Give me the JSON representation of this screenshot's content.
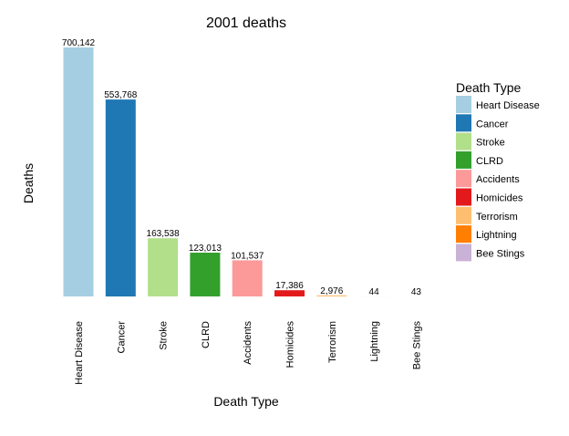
{
  "chart_data": {
    "type": "bar",
    "title": "2001 deaths",
    "xlabel": "Death Type",
    "ylabel": "Deaths",
    "ylim": [
      0,
      700142
    ],
    "grid": false,
    "legend_title": "Death Type",
    "legend_position": "right",
    "categories": [
      "Heart Disease",
      "Cancer",
      "Stroke",
      "CLRD",
      "Accidents",
      "Homicides",
      "Terrorism",
      "Lightning",
      "Bee Stings"
    ],
    "values": [
      700142,
      553768,
      163538,
      123013,
      101537,
      17386,
      2976,
      44,
      43
    ],
    "value_labels": [
      "700,142",
      "553,768",
      "163,538",
      "123,013",
      "101,537",
      "17,386",
      "2,976",
      "44",
      "43"
    ],
    "colors": [
      "#a6cee3",
      "#1f78b4",
      "#b2df8a",
      "#33a02c",
      "#fb9a99",
      "#e31a1c",
      "#fdbf6f",
      "#ff7f00",
      "#cab2d6"
    ]
  }
}
